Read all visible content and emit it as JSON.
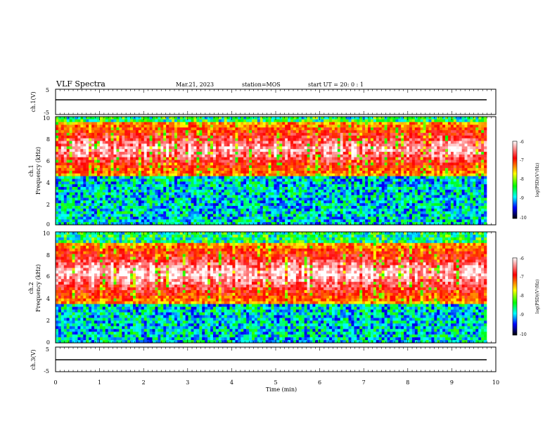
{
  "header": {
    "title": "VLF Spectra",
    "date": "Mar.21, 2023",
    "station": "station=MOS",
    "start": "start UT =  20: 0 : 1"
  },
  "chart_data": [
    {
      "type": "line",
      "ylabel": "ch.1(V)",
      "ylim": [
        -5,
        5
      ],
      "yticks": [
        "5",
        "-5"
      ],
      "x": [
        0,
        9.8
      ],
      "values": [
        -0.5,
        -0.5
      ]
    },
    {
      "type": "heatmap",
      "ylabel": "ch.1\nFrequency (kHz)",
      "ylabel_lines": [
        "ch.1",
        "Frequency (kHz)"
      ],
      "ylim": [
        0,
        10
      ],
      "yticks": [
        "0",
        "2",
        "4",
        "6",
        "8",
        "10"
      ],
      "xlim": [
        0,
        10
      ],
      "colorbar": {
        "label": "log(PSD)(V²/Hz)",
        "range": [
          -10,
          -6
        ],
        "ticks": [
          "-6",
          "-7",
          "-8",
          "-9",
          "-10"
        ]
      },
      "dominant_bands_khz": [
        [
          4.5,
          9.5
        ]
      ]
    },
    {
      "type": "heatmap",
      "ylabel": "ch.2\nFrequency (kHz)",
      "ylabel_lines": [
        "ch.2",
        "Frequency (kHz)"
      ],
      "ylim": [
        0,
        10
      ],
      "yticks": [
        "0",
        "2",
        "4",
        "6",
        "8",
        "10"
      ],
      "xlim": [
        0,
        10
      ],
      "colorbar": {
        "label": "log(PSD)(V²/Hz)",
        "range": [
          -10,
          -6
        ],
        "ticks": [
          "-6",
          "-7",
          "-8",
          "-9",
          "-10"
        ]
      },
      "dominant_bands_khz": [
        [
          3.5,
          9.0
        ]
      ]
    },
    {
      "type": "line",
      "ylabel": "ch.3(V)",
      "ylim": [
        -5,
        5
      ],
      "yticks": [
        "5",
        "-5"
      ],
      "x": [
        0,
        9.8
      ],
      "values": [
        -0.8,
        -0.8
      ]
    }
  ],
  "xaxis": {
    "label": "Time (min)",
    "range": [
      0,
      10
    ],
    "ticks": [
      "0",
      "1",
      "2",
      "3",
      "4",
      "5",
      "6",
      "7",
      "8",
      "9",
      "10"
    ]
  },
  "colors": {
    "high": "#ff0000",
    "mid": "#00ff00",
    "low": "#0000ff",
    "floor": "#000000"
  }
}
